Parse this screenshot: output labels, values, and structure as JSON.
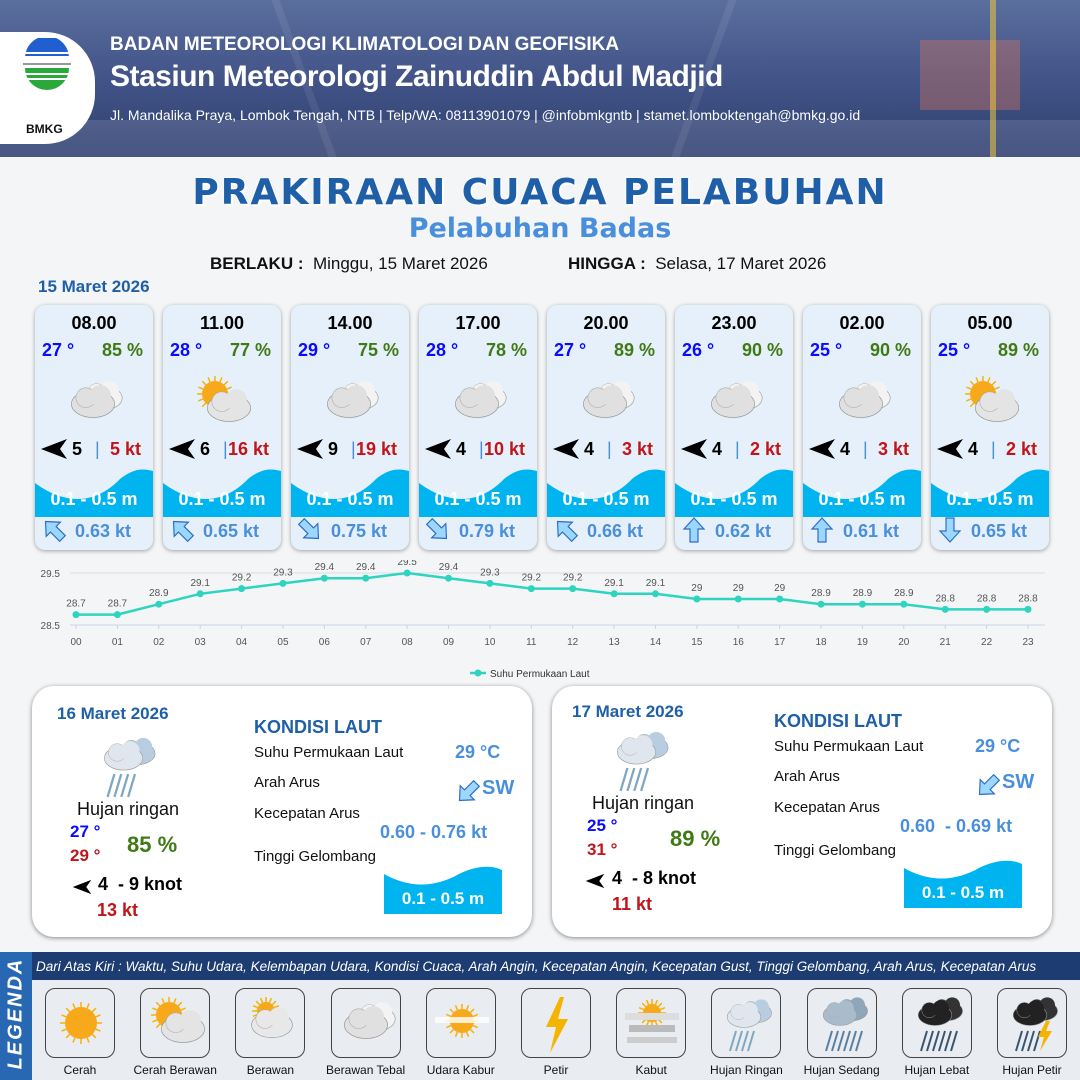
{
  "header": {
    "logo_text": "BMKG",
    "agency": "BADAN METEOROLOGI KLIMATOLOGI DAN GEOFISIKA",
    "station": "Stasiun Meteorologi Zainuddin Abdul Madjid",
    "contact": "Jl. Mandalika Praya, Lombok Tengah, NTB | Telp/WA: 08113901079 | @infobmkgntb | stamet.lomboktengah@bmkg.go.id"
  },
  "title": "PRAKIRAAN CUACA PELABUHAN",
  "subtitle": "Pelabuhan Badas",
  "validity": {
    "from_label": "BERLAKU :",
    "from_value": "Minggu, 15 Maret 2026",
    "to_label": "HINGGA :",
    "to_value": "Selasa, 17 Maret 2026"
  },
  "day1": {
    "date": "15 Maret 2026",
    "cards": [
      {
        "time": "08.00",
        "temp": "27 °",
        "hum": "85 %",
        "icon": "berawan-tebal",
        "wind_dir": "west",
        "wind": "5",
        "gust": "5 kt",
        "wave": "0.1 - 0.5 m",
        "current_dir": "NW",
        "current": "0.63 kt"
      },
      {
        "time": "11.00",
        "temp": "28 °",
        "hum": "77 %",
        "icon": "cerah-berawan",
        "wind_dir": "west",
        "wind": "6",
        "gust": "16 kt",
        "wave": "0.1 - 0.5 m",
        "current_dir": "NW",
        "current": "0.65 kt"
      },
      {
        "time": "14.00",
        "temp": "29 °",
        "hum": "75 %",
        "icon": "berawan-tebal",
        "wind_dir": "west",
        "wind": "9",
        "gust": "19 kt",
        "wave": "0.1 - 0.5 m",
        "current_dir": "SE",
        "current": "0.75 kt"
      },
      {
        "time": "17.00",
        "temp": "28 °",
        "hum": "78 %",
        "icon": "berawan-tebal",
        "wind_dir": "west",
        "wind": "4",
        "gust": "10 kt",
        "wave": "0.1 - 0.5 m",
        "current_dir": "SE",
        "current": "0.79 kt"
      },
      {
        "time": "20.00",
        "temp": "27 °",
        "hum": "89 %",
        "icon": "berawan-tebal",
        "wind_dir": "west",
        "wind": "4",
        "gust": "3 kt",
        "wave": "0.1 - 0.5 m",
        "current_dir": "NW",
        "current": "0.66 kt"
      },
      {
        "time": "23.00",
        "temp": "26 °",
        "hum": "90 %",
        "icon": "berawan-tebal",
        "wind_dir": "west",
        "wind": "4",
        "gust": "2 kt",
        "wave": "0.1 - 0.5 m",
        "current_dir": "N",
        "current": "0.62 kt"
      },
      {
        "time": "02.00",
        "temp": "25 °",
        "hum": "90 %",
        "icon": "berawan-tebal",
        "wind_dir": "west",
        "wind": "4",
        "gust": "3 kt",
        "wave": "0.1 - 0.5 m",
        "current_dir": "N",
        "current": "0.61 kt"
      },
      {
        "time": "05.00",
        "temp": "25 °",
        "hum": "89 %",
        "icon": "cerah-berawan",
        "wind_dir": "west",
        "wind": "4",
        "gust": "2 kt",
        "wave": "0.1 - 0.5 m",
        "current_dir": "S",
        "current": "0.65 kt"
      }
    ]
  },
  "chart_data": {
    "type": "line",
    "categories": [
      "00",
      "01",
      "02",
      "03",
      "04",
      "05",
      "06",
      "07",
      "08",
      "09",
      "10",
      "11",
      "12",
      "13",
      "14",
      "15",
      "16",
      "17",
      "18",
      "19",
      "20",
      "21",
      "22",
      "23"
    ],
    "series": [
      {
        "name": "Suhu Permukaan Laut",
        "values": [
          28.7,
          28.7,
          28.9,
          29.1,
          29.2,
          29.3,
          29.4,
          29.4,
          29.5,
          29.4,
          29.3,
          29.2,
          29.2,
          29.1,
          29.1,
          29.0,
          29.0,
          29.0,
          28.9,
          28.9,
          28.9,
          28.8,
          28.8,
          28.8
        ]
      }
    ],
    "y_ticks": [
      "28.5",
      "29.5"
    ],
    "ylim": [
      28.5,
      29.5
    ],
    "grid": true,
    "legend": "bottom",
    "color": "#2dd4bf"
  },
  "days": [
    {
      "date": "16 Maret 2026",
      "icon": "hujan-ringan",
      "condition": "Hujan ringan",
      "tmin": "27 °",
      "tmax": "29 °",
      "hum": "85 %",
      "wind": "4  - 9 knot",
      "gust": "13 kt",
      "sea": {
        "heading": "KONDISI LAUT",
        "sst_label": "Suhu Permukaan Laut",
        "sst": "29 °C",
        "dir_label": "Arah Arus",
        "dir": "SW",
        "speed_label": "Kecepatan Arus",
        "speed": "0.60 - 0.76 kt",
        "wave_label": "Tinggi Gelombang",
        "wave": "0.1 - 0.5 m"
      }
    },
    {
      "date": "17 Maret 2026",
      "icon": "hujan-ringan",
      "condition": "Hujan ringan",
      "tmin": "25 °",
      "tmax": "31 °",
      "hum": "89 %",
      "wind": "4  - 8 knot",
      "gust": "11 kt",
      "sea": {
        "heading": "KONDISI LAUT",
        "sst_label": "Suhu Permukaan Laut",
        "sst": "29 °C",
        "dir_label": "Arah Arus",
        "dir": "SW",
        "speed_label": "Kecepatan Arus",
        "speed": "0.60  - 0.69 kt",
        "wave_label": "Tinggi Gelombang",
        "wave": "0.1 - 0.5 m"
      }
    }
  ],
  "legend": {
    "title": "LEGENDA",
    "description": "Dari Atas Kiri : Waktu, Suhu Udara, Kelembapan Udara, Kondisi Cuaca, Arah Angin, Kecepatan Angin, Kecepatan Gust, Tinggi Gelombang, Arah Arus, Kecepatan Arus",
    "items": [
      {
        "label": "Cerah",
        "icon": "cerah"
      },
      {
        "label": "Cerah Berawan",
        "icon": "cerah-berawan"
      },
      {
        "label": "Berawan",
        "icon": "berawan"
      },
      {
        "label": "Berawan Tebal",
        "icon": "berawan-tebal"
      },
      {
        "label": "Udara Kabur",
        "icon": "udara-kabur"
      },
      {
        "label": "Petir",
        "icon": "petir"
      },
      {
        "label": "Kabut",
        "icon": "kabut"
      },
      {
        "label": "Hujan Ringan",
        "icon": "hujan-ringan"
      },
      {
        "label": "Hujan Sedang",
        "icon": "hujan-sedang"
      },
      {
        "label": "Hujan Lebat",
        "icon": "hujan-lebat"
      },
      {
        "label": "Hujan Petir",
        "icon": "hujan-petir"
      }
    ]
  },
  "colors": {
    "brand": "#1f5fa8",
    "temp": "#0a0aff",
    "humidity": "#3f7a14",
    "gust": "#c0151a",
    "wave": "#00b4f0",
    "current": "#4a8fdc"
  }
}
